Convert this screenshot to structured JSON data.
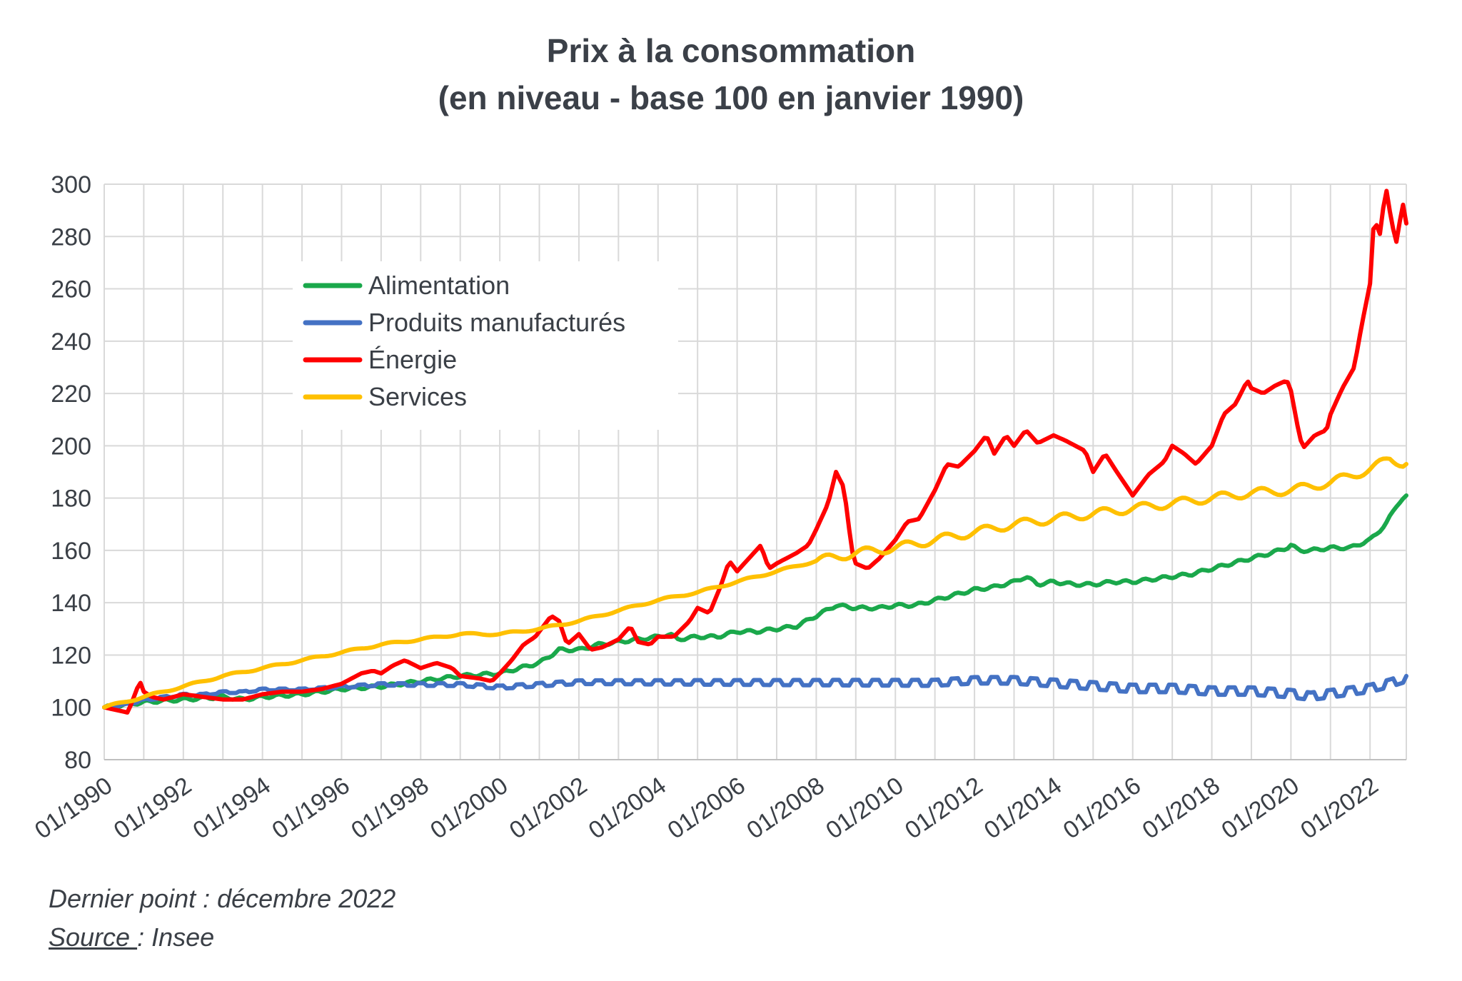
{
  "chart_data": {
    "type": "line",
    "title": "Prix à la consommation",
    "subtitle": "(en niveau - base 100 en janvier 1990)",
    "xlabel": "",
    "ylabel": "",
    "xlim": [
      1990.0,
      2022.917
    ],
    "ylim": [
      80,
      300
    ],
    "yticks": [
      80,
      100,
      120,
      140,
      160,
      180,
      200,
      220,
      240,
      260,
      280,
      300
    ],
    "xticks": [
      {
        "value": 1990,
        "label": "01/1990"
      },
      {
        "value": 1992,
        "label": "01/1992"
      },
      {
        "value": 1994,
        "label": "01/1994"
      },
      {
        "value": 1996,
        "label": "01/1996"
      },
      {
        "value": 1998,
        "label": "01/1998"
      },
      {
        "value": 2000,
        "label": "01/2000"
      },
      {
        "value": 2002,
        "label": "01/2002"
      },
      {
        "value": 2004,
        "label": "01/2004"
      },
      {
        "value": 2006,
        "label": "01/2006"
      },
      {
        "value": 2008,
        "label": "01/2008"
      },
      {
        "value": 2010,
        "label": "01/2010"
      },
      {
        "value": 2012,
        "label": "01/2012"
      },
      {
        "value": 2014,
        "label": "01/2014"
      },
      {
        "value": 2016,
        "label": "01/2016"
      },
      {
        "value": 2018,
        "label": "01/2018"
      },
      {
        "value": 2020,
        "label": "01/2020"
      },
      {
        "value": 2022,
        "label": "01/2022"
      }
    ],
    "grid": true,
    "legend_position": "top-left",
    "series": [
      {
        "name": "Alimentation",
        "color": "#1aa84b",
        "points": [
          [
            1990.0,
            100
          ],
          [
            1991.0,
            102
          ],
          [
            1992.0,
            103
          ],
          [
            1993.0,
            104
          ],
          [
            1993.5,
            103
          ],
          [
            1994.0,
            104
          ],
          [
            1995.0,
            105
          ],
          [
            1996.0,
            107
          ],
          [
            1997.0,
            108
          ],
          [
            1998.0,
            110
          ],
          [
            1999.0,
            112
          ],
          [
            2000.0,
            113
          ],
          [
            2000.5,
            115
          ],
          [
            2001.0,
            117
          ],
          [
            2001.5,
            122
          ],
          [
            2002.0,
            122
          ],
          [
            2002.5,
            124
          ],
          [
            2003.0,
            125
          ],
          [
            2003.5,
            126
          ],
          [
            2004.0,
            127
          ],
          [
            2004.3,
            128
          ],
          [
            2004.5,
            126
          ],
          [
            2005.0,
            127
          ],
          [
            2005.5,
            127
          ],
          [
            2006.0,
            129
          ],
          [
            2006.5,
            129
          ],
          [
            2007.0,
            130
          ],
          [
            2007.5,
            131
          ],
          [
            2008.0,
            135
          ],
          [
            2008.5,
            139
          ],
          [
            2009.0,
            138
          ],
          [
            2009.6,
            138
          ],
          [
            2010.0,
            139
          ],
          [
            2010.5,
            139
          ],
          [
            2011.0,
            141
          ],
          [
            2011.5,
            143
          ],
          [
            2012.0,
            145
          ],
          [
            2012.5,
            146
          ],
          [
            2013.0,
            148
          ],
          [
            2013.3,
            150
          ],
          [
            2013.6,
            147
          ],
          [
            2014.0,
            148
          ],
          [
            2014.5,
            147
          ],
          [
            2015.0,
            147
          ],
          [
            2015.5,
            148
          ],
          [
            2016.0,
            148
          ],
          [
            2016.5,
            149
          ],
          [
            2017.0,
            150
          ],
          [
            2017.5,
            151
          ],
          [
            2018.0,
            153
          ],
          [
            2018.5,
            155
          ],
          [
            2019.0,
            157
          ],
          [
            2019.5,
            159
          ],
          [
            2019.9,
            161
          ],
          [
            2020.0,
            162
          ],
          [
            2020.2,
            160
          ],
          [
            2020.5,
            160
          ],
          [
            2021.0,
            161
          ],
          [
            2021.5,
            161
          ],
          [
            2022.0,
            164
          ],
          [
            2022.4,
            170
          ],
          [
            2022.7,
            178
          ],
          [
            2022.917,
            181
          ]
        ]
      },
      {
        "name": "Produits manufacturés",
        "color": "#4472c4",
        "points": [
          [
            1990.0,
            100
          ],
          [
            1990.5,
            101
          ],
          [
            1991.0,
            103
          ],
          [
            1991.5,
            104
          ],
          [
            1992.0,
            105
          ],
          [
            1992.5,
            105
          ],
          [
            1993.0,
            106
          ],
          [
            1993.5,
            106
          ],
          [
            1994.0,
            107
          ],
          [
            1995.0,
            107
          ],
          [
            1996.0,
            108
          ],
          [
            1997.0,
            109
          ],
          [
            1998.0,
            109
          ],
          [
            1999.0,
            109
          ],
          [
            2000.0,
            108
          ],
          [
            2001.0,
            109
          ],
          [
            2002.0,
            110
          ],
          [
            2003.0,
            110
          ],
          [
            2004.0,
            110
          ],
          [
            2005.0,
            110
          ],
          [
            2006.0,
            110
          ],
          [
            2007.0,
            110
          ],
          [
            2008.0,
            110
          ],
          [
            2009.0,
            110
          ],
          [
            2010.0,
            110
          ],
          [
            2011.0,
            110
          ],
          [
            2012.0,
            111
          ],
          [
            2013.0,
            111
          ],
          [
            2014.0,
            110
          ],
          [
            2015.0,
            109
          ],
          [
            2016.0,
            108
          ],
          [
            2017.0,
            108
          ],
          [
            2018.0,
            107
          ],
          [
            2019.0,
            107
          ],
          [
            2020.0,
            106
          ],
          [
            2020.5,
            105
          ],
          [
            2021.0,
            106
          ],
          [
            2021.5,
            107
          ],
          [
            2022.0,
            108
          ],
          [
            2022.5,
            110
          ],
          [
            2022.917,
            112
          ]
        ]
      },
      {
        "name": "Énergie",
        "color": "#ff0000",
        "points": [
          [
            1990.0,
            100
          ],
          [
            1990.3,
            99
          ],
          [
            1990.6,
            98
          ],
          [
            1990.8,
            106
          ],
          [
            1990.9,
            110
          ],
          [
            1991.0,
            106
          ],
          [
            1991.2,
            104
          ],
          [
            1991.5,
            103
          ],
          [
            1992.0,
            105
          ],
          [
            1992.5,
            104
          ],
          [
            1993.0,
            103
          ],
          [
            1993.5,
            103
          ],
          [
            1994.0,
            105
          ],
          [
            1994.5,
            106
          ],
          [
            1995.0,
            106
          ],
          [
            1995.5,
            107
          ],
          [
            1996.0,
            109
          ],
          [
            1996.5,
            113
          ],
          [
            1996.8,
            114
          ],
          [
            1997.0,
            113
          ],
          [
            1997.3,
            116
          ],
          [
            1997.6,
            118
          ],
          [
            1998.0,
            115
          ],
          [
            1998.4,
            117
          ],
          [
            1998.8,
            115
          ],
          [
            1999.0,
            112
          ],
          [
            1999.5,
            111
          ],
          [
            1999.8,
            110
          ],
          [
            2000.0,
            113
          ],
          [
            2000.3,
            118
          ],
          [
            2000.6,
            124
          ],
          [
            2000.9,
            127
          ],
          [
            2001.1,
            131
          ],
          [
            2001.3,
            135
          ],
          [
            2001.5,
            133
          ],
          [
            2001.7,
            124
          ],
          [
            2002.0,
            128
          ],
          [
            2002.3,
            122
          ],
          [
            2002.6,
            123
          ],
          [
            2003.0,
            126
          ],
          [
            2003.3,
            131
          ],
          [
            2003.5,
            125
          ],
          [
            2003.8,
            124
          ],
          [
            2004.0,
            127
          ],
          [
            2004.4,
            127
          ],
          [
            2004.8,
            133
          ],
          [
            2005.0,
            138
          ],
          [
            2005.3,
            136
          ],
          [
            2005.6,
            147
          ],
          [
            2005.8,
            156
          ],
          [
            2006.0,
            152
          ],
          [
            2006.3,
            157
          ],
          [
            2006.6,
            162
          ],
          [
            2006.8,
            153
          ],
          [
            2007.0,
            155
          ],
          [
            2007.5,
            159
          ],
          [
            2007.8,
            162
          ],
          [
            2008.0,
            168
          ],
          [
            2008.3,
            178
          ],
          [
            2008.5,
            190
          ],
          [
            2008.7,
            184
          ],
          [
            2008.9,
            160
          ],
          [
            2009.0,
            155
          ],
          [
            2009.3,
            153
          ],
          [
            2009.6,
            157
          ],
          [
            2010.0,
            164
          ],
          [
            2010.3,
            171
          ],
          [
            2010.6,
            172
          ],
          [
            2011.0,
            183
          ],
          [
            2011.3,
            193
          ],
          [
            2011.6,
            192
          ],
          [
            2012.0,
            198
          ],
          [
            2012.3,
            204
          ],
          [
            2012.5,
            197
          ],
          [
            2012.8,
            204
          ],
          [
            2013.0,
            200
          ],
          [
            2013.3,
            206
          ],
          [
            2013.6,
            201
          ],
          [
            2014.0,
            204
          ],
          [
            2014.3,
            202
          ],
          [
            2014.8,
            198
          ],
          [
            2015.0,
            190
          ],
          [
            2015.3,
            197
          ],
          [
            2015.6,
            190
          ],
          [
            2016.0,
            181
          ],
          [
            2016.4,
            189
          ],
          [
            2016.8,
            194
          ],
          [
            2017.0,
            200
          ],
          [
            2017.3,
            197
          ],
          [
            2017.6,
            193
          ],
          [
            2018.0,
            200
          ],
          [
            2018.3,
            212
          ],
          [
            2018.6,
            216
          ],
          [
            2018.9,
            225
          ],
          [
            2019.0,
            222
          ],
          [
            2019.3,
            220
          ],
          [
            2019.6,
            223
          ],
          [
            2019.9,
            225
          ],
          [
            2020.0,
            221
          ],
          [
            2020.2,
            205
          ],
          [
            2020.3,
            199
          ],
          [
            2020.6,
            204
          ],
          [
            2020.9,
            206
          ],
          [
            2021.0,
            212
          ],
          [
            2021.3,
            222
          ],
          [
            2021.6,
            230
          ],
          [
            2021.8,
            247
          ],
          [
            2022.0,
            262
          ],
          [
            2022.1,
            287
          ],
          [
            2022.25,
            281
          ],
          [
            2022.4,
            299
          ],
          [
            2022.55,
            285
          ],
          [
            2022.7,
            276
          ],
          [
            2022.8,
            295
          ],
          [
            2022.917,
            285
          ]
        ]
      },
      {
        "name": "Services",
        "color": "#ffc000",
        "points": [
          [
            1990.0,
            100
          ],
          [
            1991.0,
            104
          ],
          [
            1992.0,
            108
          ],
          [
            1993.0,
            112
          ],
          [
            1994.0,
            115
          ],
          [
            1995.0,
            118
          ],
          [
            1996.0,
            121
          ],
          [
            1997.0,
            124
          ],
          [
            1998.0,
            126
          ],
          [
            1999.0,
            128
          ],
          [
            2000.0,
            128
          ],
          [
            2001.0,
            130
          ],
          [
            2002.0,
            133
          ],
          [
            2003.0,
            137
          ],
          [
            2004.0,
            141
          ],
          [
            2005.0,
            144
          ],
          [
            2006.0,
            148
          ],
          [
            2007.0,
            152
          ],
          [
            2008.0,
            156
          ],
          [
            2009.0,
            159
          ],
          [
            2010.0,
            161
          ],
          [
            2011.0,
            164
          ],
          [
            2012.0,
            167
          ],
          [
            2013.0,
            170
          ],
          [
            2014.0,
            172
          ],
          [
            2015.0,
            174
          ],
          [
            2016.0,
            176
          ],
          [
            2017.0,
            178
          ],
          [
            2018.0,
            180
          ],
          [
            2019.0,
            182
          ],
          [
            2020.0,
            183
          ],
          [
            2021.0,
            186
          ],
          [
            2022.0,
            191
          ],
          [
            2022.5,
            195
          ],
          [
            2022.917,
            193
          ]
        ]
      }
    ]
  },
  "footer": {
    "note": "Dernier point : décembre 2022",
    "source_label": "Source ",
    "source_value": ": Insee"
  }
}
